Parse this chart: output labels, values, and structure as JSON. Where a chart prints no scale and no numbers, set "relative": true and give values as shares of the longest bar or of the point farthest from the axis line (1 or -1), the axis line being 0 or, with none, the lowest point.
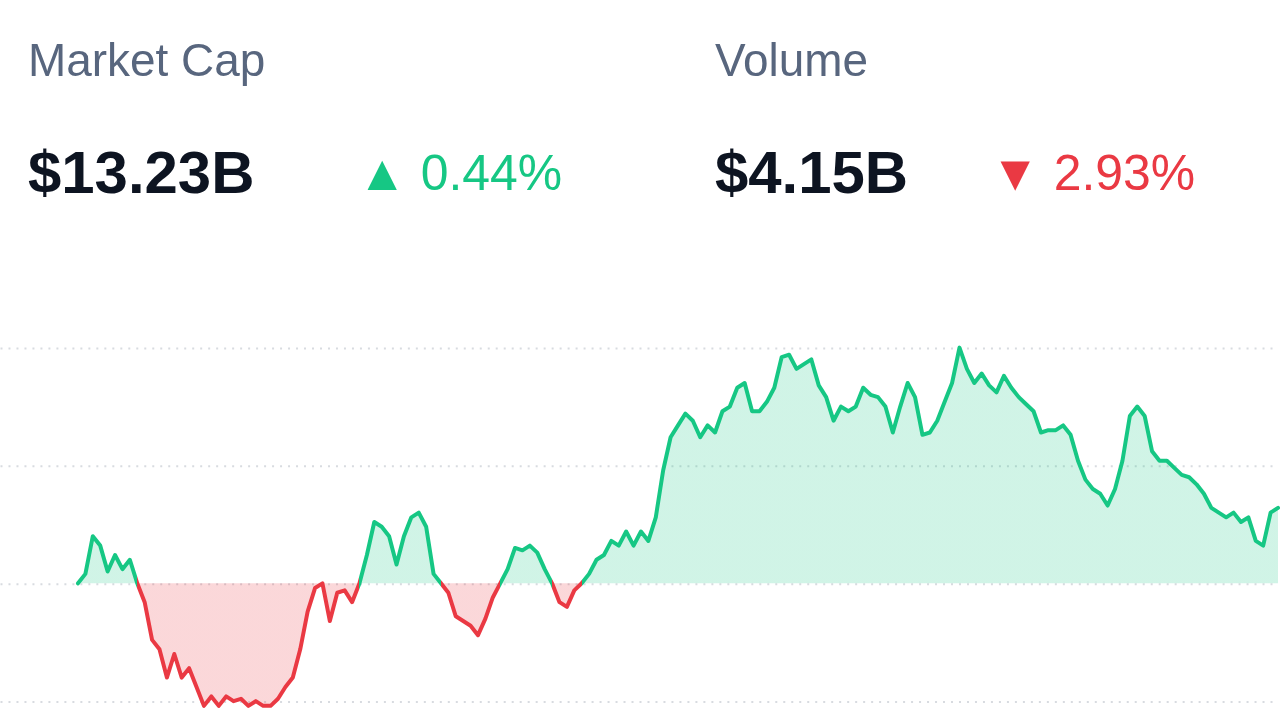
{
  "chart_data": {
    "type": "area",
    "relative": true,
    "grid": "y",
    "annotations": [
      "Market Cap",
      "$13.23B",
      "▲ 0.44%",
      "Volume",
      "$4.15B",
      "▼ 2.93%"
    ],
    "categories": [
      null,
      null,
      null,
      null,
      null,
      null,
      null,
      null,
      null,
      null,
      null,
      null,
      null,
      null,
      null,
      null,
      null,
      null,
      null,
      null,
      null,
      null,
      null,
      null,
      null,
      null,
      null,
      null,
      null,
      null,
      null,
      null,
      null,
      null,
      null,
      null,
      null,
      null,
      null,
      null,
      null,
      null,
      null,
      null,
      null,
      null,
      null,
      null,
      null,
      null,
      null,
      null,
      null,
      null,
      null,
      null,
      null,
      null,
      null,
      null,
      null,
      null,
      null,
      null,
      null,
      null,
      null,
      null,
      null,
      null,
      null,
      null,
      null,
      null,
      null,
      null,
      null,
      null,
      null,
      null,
      null,
      null,
      null,
      null,
      null,
      null,
      null,
      null,
      null,
      null,
      null,
      null,
      null,
      null,
      null,
      null,
      null,
      null,
      null,
      null,
      null,
      null,
      null,
      null,
      null,
      null,
      null,
      null,
      null,
      null,
      null,
      null,
      null,
      null,
      null,
      null,
      null,
      null,
      null,
      null,
      null,
      null,
      null,
      null,
      null,
      null,
      null,
      null,
      null,
      null,
      null,
      null,
      null,
      null,
      null,
      null,
      null,
      null,
      null,
      null,
      null,
      null,
      null,
      null,
      null,
      null,
      null,
      null,
      null,
      null,
      null,
      null,
      null,
      null,
      null,
      null,
      null,
      null,
      null,
      null,
      null,
      null,
      null
    ],
    "series": [
      {
        "color": "#16c784",
        "colors": [
          "#16c784",
          "#16c784",
          "#16c784",
          "#16c784",
          "#16c784",
          "#16c784",
          "#16c784",
          "#16c784",
          "#16c784",
          "#ea3943",
          "#ea3943",
          "#ea3943",
          "#ea3943",
          "#ea3943",
          "#ea3943",
          "#ea3943",
          "#ea3943",
          "#ea3943",
          "#ea3943",
          "#ea3943",
          "#ea3943",
          "#ea3943",
          "#ea3943",
          "#ea3943",
          "#ea3943",
          "#ea3943",
          "#ea3943",
          "#ea3943",
          "#ea3943",
          "#ea3943",
          "#ea3943",
          "#ea3943",
          "#ea3943",
          "#ea3943",
          "#ea3943",
          "#ea3943",
          "#ea3943",
          "#ea3943",
          "#16c784",
          "#16c784",
          "#16c784",
          "#16c784",
          "#16c784",
          "#16c784",
          "#16c784",
          "#16c784",
          "#16c784",
          "#16c784",
          "#16c784",
          "#16c784",
          "#ea3943",
          "#ea3943",
          "#ea3943",
          "#ea3943",
          "#ea3943",
          "#ea3943",
          "#ea3943",
          "#16c784",
          "#16c784",
          "#16c784",
          "#16c784",
          "#16c784",
          "#16c784",
          "#16c784",
          "#16c784",
          "#ea3943",
          "#ea3943",
          "#ea3943",
          "#16c784",
          "#16c784",
          "#16c784",
          "#16c784",
          "#16c784",
          "#16c784",
          "#16c784",
          "#16c784",
          "#16c784",
          "#16c784",
          "#16c784",
          "#16c784",
          "#16c784",
          "#16c784",
          "#16c784",
          "#16c784",
          "#16c784",
          "#16c784",
          "#16c784",
          "#16c784",
          "#16c784",
          "#16c784",
          "#16c784",
          "#16c784",
          "#16c784",
          "#16c784",
          "#16c784",
          "#16c784",
          "#16c784",
          "#16c784",
          "#16c784",
          "#16c784",
          "#16c784",
          "#16c784",
          "#16c784",
          "#16c784",
          "#16c784",
          "#16c784",
          "#16c784",
          "#16c784",
          "#16c784",
          "#16c784",
          "#16c784",
          "#16c784",
          "#16c784",
          "#16c784",
          "#16c784",
          "#16c784",
          "#16c784",
          "#16c784",
          "#16c784",
          "#16c784",
          "#16c784",
          "#16c784",
          "#16c784",
          "#16c784",
          "#16c784",
          "#16c784",
          "#16c784",
          "#16c784",
          "#16c784",
          "#16c784",
          "#16c784",
          "#16c784",
          "#16c784",
          "#16c784",
          "#16c784",
          "#16c784",
          "#16c784",
          "#16c784",
          "#16c784",
          "#16c784",
          "#16c784",
          "#16c784",
          "#16c784",
          "#16c784",
          "#16c784",
          "#16c784",
          "#16c784",
          "#16c784",
          "#16c784",
          "#16c784",
          "#16c784",
          "#16c784",
          "#16c784",
          "#16c784",
          "#16c784",
          "#16c784",
          "#16c784",
          "#16c784",
          "#16c784",
          "#16c784",
          "#16c784",
          "#16c784",
          "#16c784"
        ],
        "values": [
          0,
          0.04,
          0.2,
          0.16,
          0.05,
          0.12,
          0.06,
          0.1,
          0,
          -0.08,
          -0.24,
          -0.28,
          -0.4,
          -0.3,
          -0.4,
          -0.36,
          -0.44,
          -0.52,
          -0.48,
          -0.52,
          -0.48,
          -0.5,
          -0.49,
          -0.52,
          -0.5,
          -0.52,
          -0.52,
          -0.49,
          -0.44,
          -0.4,
          -0.28,
          -0.12,
          -0.02,
          0,
          -0.16,
          -0.04,
          -0.03,
          -0.08,
          0,
          0.12,
          0.26,
          0.24,
          0.2,
          0.08,
          0.2,
          0.28,
          0.3,
          0.24,
          0.04,
          0,
          -0.04,
          -0.14,
          -0.16,
          -0.18,
          -0.22,
          -0.15,
          -0.06,
          0,
          0.06,
          0.15,
          0.14,
          0.16,
          0.13,
          0.06,
          0,
          -0.08,
          -0.1,
          -0.03,
          0,
          0.04,
          0.1,
          0.12,
          0.18,
          0.16,
          0.22,
          0.16,
          0.22,
          0.18,
          0.28,
          0.48,
          0.62,
          0.67,
          0.72,
          0.69,
          0.62,
          0.67,
          0.64,
          0.73,
          0.75,
          0.83,
          0.85,
          0.73,
          0.73,
          0.77,
          0.83,
          0.96,
          0.97,
          0.91,
          0.93,
          0.95,
          0.84,
          0.79,
          0.69,
          0.75,
          0.73,
          0.75,
          0.83,
          0.8,
          0.79,
          0.75,
          0.64,
          0.75,
          0.85,
          0.79,
          0.63,
          0.64,
          0.69,
          0.77,
          0.85,
          1,
          0.91,
          0.85,
          0.89,
          0.84,
          0.81,
          0.88,
          0.83,
          0.79,
          0.76,
          0.73,
          0.64,
          0.65,
          0.65,
          0.67,
          0.63,
          0.52,
          0.44,
          0.4,
          0.38,
          0.33,
          0.4,
          0.52,
          0.71,
          0.75,
          0.71,
          0.56,
          0.52,
          0.52,
          0.49,
          0.46,
          0.45,
          0.42,
          0.38,
          0.32,
          0.3,
          0.28,
          0.3,
          0.26,
          0.28,
          0.18,
          0.16,
          0.3,
          0.32
        ]
      }
    ]
  }
}
